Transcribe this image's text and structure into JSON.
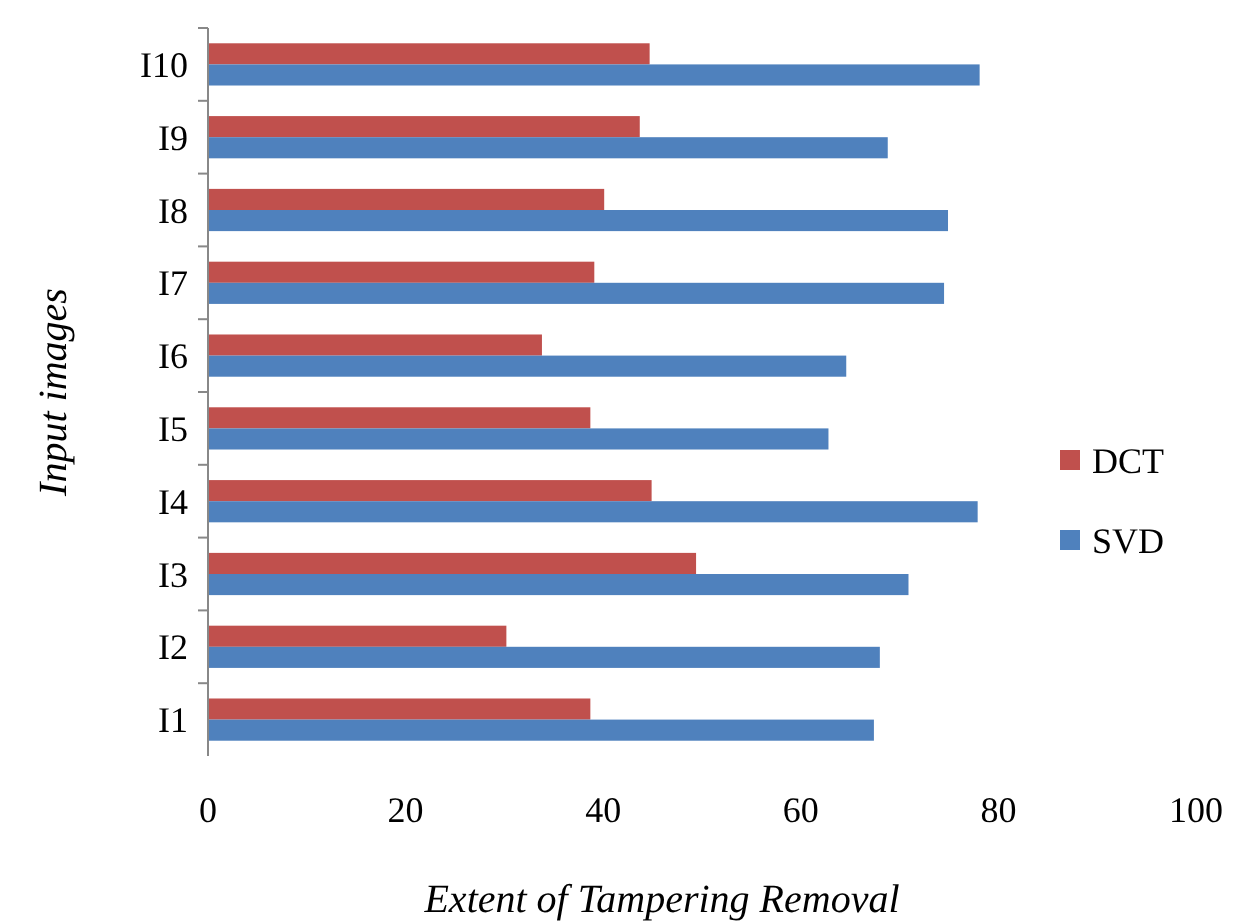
{
  "chart_data": {
    "type": "bar",
    "orientation": "horizontal",
    "xlabel": "Extent of Tampering Removal",
    "ylabel": "Input images",
    "categories": [
      "I10",
      "I9",
      "I8",
      "I7",
      "I6",
      "I5",
      "I4",
      "I3",
      "I2",
      "I1"
    ],
    "series": [
      {
        "name": "DCT",
        "color": "#c0504d",
        "values": [
          44.7,
          43.7,
          40.1,
          39.1,
          33.8,
          38.7,
          44.9,
          49.4,
          30.2,
          38.7
        ]
      },
      {
        "name": "SVD",
        "color": "#4f81bd",
        "values": [
          78.1,
          68.8,
          74.9,
          74.5,
          64.6,
          62.8,
          77.9,
          70.9,
          68,
          67.4
        ]
      }
    ],
    "xlim": [
      0,
      100
    ],
    "xticks": [
      0,
      20,
      40,
      60,
      80,
      100
    ],
    "grid": false,
    "legend": "right"
  }
}
